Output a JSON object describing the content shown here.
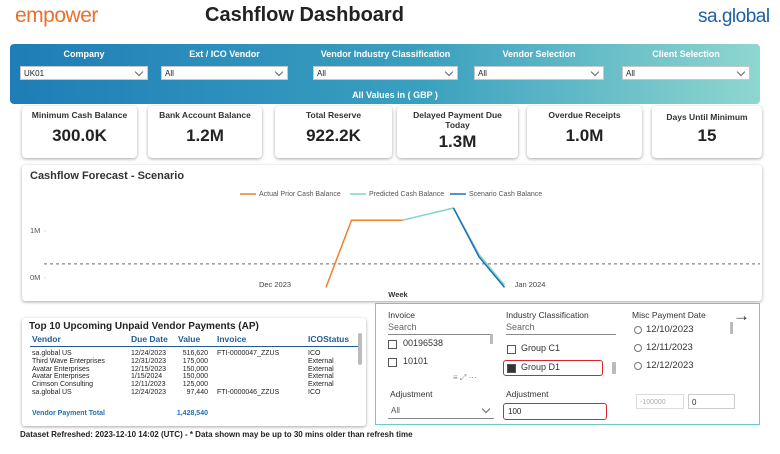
{
  "header": {
    "logo": "empower",
    "title": "Cashflow Dashboard",
    "brand": "sa.global"
  },
  "filters": [
    {
      "label": "Company",
      "value": "UK01"
    },
    {
      "label": "Ext / ICO Vendor",
      "value": "All"
    },
    {
      "label": "Vendor Industry Classification",
      "value": "All"
    },
    {
      "label": "Vendor Selection",
      "value": "All"
    },
    {
      "label": "Client Selection",
      "value": "All"
    }
  ],
  "currency_note": "All Values in ( GBP )",
  "kpis": [
    {
      "label": "Minimum Cash Balance",
      "value": "300.0K"
    },
    {
      "label": "Bank Account Balance",
      "value": "1.2M"
    },
    {
      "label": "Total Reserve",
      "value": "922.2K"
    },
    {
      "label": "Delayed Payment Due Today",
      "value": "1.3M"
    },
    {
      "label": "Overdue Receipts",
      "value": "1.0M"
    },
    {
      "label": "Days Until Minimum",
      "value": "15"
    }
  ],
  "chart_data": {
    "type": "line",
    "title": "Cashflow Forecast - Scenario",
    "x_label": "Week",
    "categories": [
      null,
      null,
      null,
      null,
      null,
      null,
      null,
      null,
      null,
      "Dec 2023",
      null,
      null,
      null,
      null,
      null,
      null,
      null,
      null,
      null,
      "Jan 2024",
      null,
      null,
      null,
      null,
      null,
      null,
      null,
      null,
      null
    ],
    "series": [
      {
        "name": "Actual Prior Cash Balance",
        "color": "#f07f2e",
        "values": [
          null,
          null,
          null,
          null,
          null,
          null,
          null,
          null,
          null,
          null,
          null,
          -0.2,
          1.23,
          1.23,
          1.23,
          null,
          null,
          null,
          null,
          null,
          null,
          null,
          null,
          null,
          null,
          null,
          null,
          null,
          null
        ]
      },
      {
        "name": "Predicted Cash Balance",
        "color": "#7fd3c8",
        "values": [
          null,
          null,
          null,
          null,
          null,
          null,
          null,
          null,
          null,
          null,
          null,
          null,
          null,
          null,
          1.23,
          1.36,
          1.49,
          0.5,
          -0.15,
          null,
          null,
          null,
          null,
          null,
          null,
          null,
          null,
          null,
          null
        ]
      },
      {
        "name": "Scenario Cash Balance",
        "color": "#1f6fb5",
        "values": [
          null,
          null,
          null,
          null,
          null,
          null,
          null,
          null,
          null,
          null,
          null,
          null,
          null,
          null,
          1.23,
          null,
          1.49,
          0.45,
          -0.2,
          null,
          null,
          null,
          null,
          null,
          null,
          null,
          null,
          null,
          null
        ]
      }
    ],
    "reference_value": 0.3,
    "ylim": [
      -0.2,
      1.6
    ],
    "yticks": [
      {
        "value": 0,
        "label": "0M"
      },
      {
        "value": 1,
        "label": "1M"
      }
    ]
  },
  "table": {
    "title": "Top 10 Upcoming Unpaid Vendor Payments (AP)",
    "columns": [
      "Vendor",
      "Due Date",
      "Value",
      "Invoice",
      "ICOStatus"
    ],
    "rows": [
      {
        "vendor": "sa.global US",
        "due": "12/24/2023",
        "value": "516,620",
        "invoice": "FTI-0000047_ZZUS",
        "status": "ICO"
      },
      {
        "vendor": "Third Wave Enterprises",
        "due": "12/31/2023",
        "value": "175,000",
        "status": "External"
      },
      {
        "vendor": "Avatar Enterprises",
        "due": "12/15/2023",
        "value": "150,000",
        "status": "External"
      },
      {
        "vendor": "Avatar Enterprises",
        "due": "1/15/2024",
        "value": "150,000",
        "status": "External"
      },
      {
        "vendor": "Crimson Consulting",
        "due": "12/11/2023",
        "value": "125,000",
        "status": "External"
      },
      {
        "vendor": "sa.global US",
        "due": "12/24/2023",
        "value": "97,440",
        "invoice": "FTI-0000046_ZZUS",
        "status": "ICO"
      }
    ],
    "total": {
      "label": "Vendor Payment Total",
      "value": "1,428,540"
    }
  },
  "slicers": {
    "invoice": {
      "label": "Invoice",
      "search": "Search",
      "items": [
        "00196538",
        "10101"
      ]
    },
    "industry": {
      "label": "Industry Classification",
      "search": "Search",
      "items": [
        "Group C1",
        "Group D1"
      ]
    },
    "misc_date": {
      "label": "Misc Payment Date",
      "items": [
        "12/10/2023",
        "12/11/2023",
        "12/12/2023"
      ]
    },
    "adjustment_1": {
      "label": "Adjustment",
      "value": "All"
    },
    "adjustment_2": {
      "label": "Adjustment",
      "value": "100"
    },
    "range": {
      "min": "-100000",
      "max": "0"
    }
  },
  "footer": "Dataset Refreshed: 2023-12-10 14:02 (UTC) - * Data shown may be up to 30 mins older than refresh time"
}
